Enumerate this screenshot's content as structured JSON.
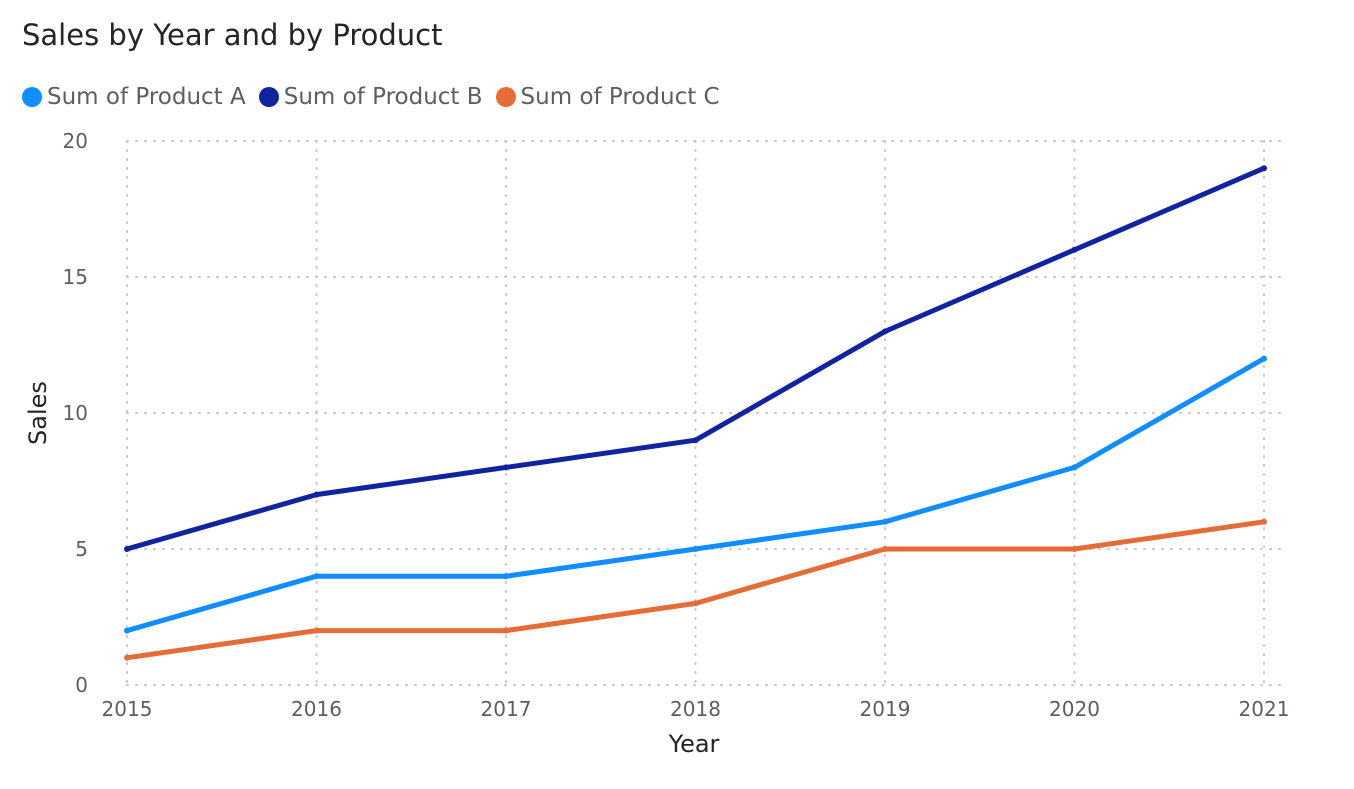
{
  "chart_data": {
    "type": "line",
    "title": "Sales by Year and by Product",
    "xlabel": "Year",
    "ylabel": "Sales",
    "categories": [
      "2015",
      "2016",
      "2017",
      "2018",
      "2019",
      "2020",
      "2021"
    ],
    "y_ticks": [
      "0",
      "5",
      "10",
      "15",
      "20"
    ],
    "ylim": [
      0,
      20
    ],
    "grid": true,
    "legend_position": "top-left",
    "series": [
      {
        "name": "Sum of Product A",
        "color": "#118DFF",
        "values": [
          2,
          4,
          4,
          5,
          6,
          8,
          12
        ]
      },
      {
        "name": "Sum of Product B",
        "color": "#12239E",
        "values": [
          5,
          7,
          8,
          9,
          13,
          16,
          19
        ]
      },
      {
        "name": "Sum of Product C",
        "color": "#E66C37",
        "values": [
          1,
          2,
          2,
          3,
          5,
          5,
          6
        ]
      }
    ]
  }
}
